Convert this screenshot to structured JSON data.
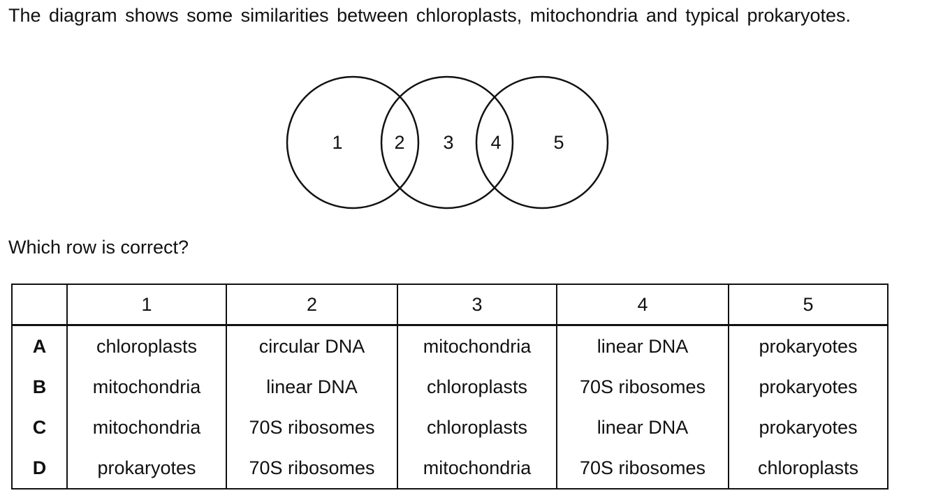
{
  "intro": "The diagram shows some similarities between chloroplasts, mitochondria and typical prokaryotes.",
  "venn": {
    "regions": [
      "1",
      "2",
      "3",
      "4",
      "5"
    ]
  },
  "question": "Which row is correct?",
  "table": {
    "headers": [
      "",
      "1",
      "2",
      "3",
      "4",
      "5"
    ],
    "rows": [
      {
        "label": "A",
        "cells": [
          "chloroplasts",
          "circular DNA",
          "mitochondria",
          "linear DNA",
          "prokaryotes"
        ]
      },
      {
        "label": "B",
        "cells": [
          "mitochondria",
          "linear DNA",
          "chloroplasts",
          "70S ribosomes",
          "prokaryotes"
        ]
      },
      {
        "label": "C",
        "cells": [
          "mitochondria",
          "70S ribosomes",
          "chloroplasts",
          "linear DNA",
          "prokaryotes"
        ]
      },
      {
        "label": "D",
        "cells": [
          "prokaryotes",
          "70S ribosomes",
          "mitochondria",
          "70S ribosomes",
          "chloroplasts"
        ]
      }
    ]
  }
}
